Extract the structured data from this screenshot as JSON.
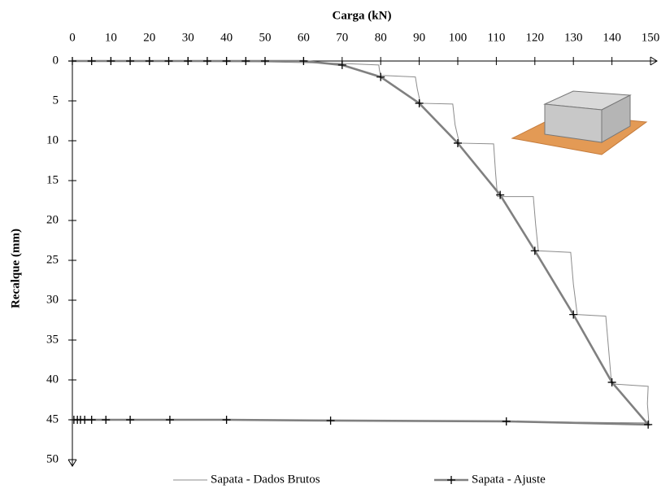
{
  "chart_data": {
    "type": "line",
    "xlabel": "Carga (kN)",
    "ylabel": "Recalque (mm)",
    "xlim": [
      0,
      150
    ],
    "xticks": [
      0,
      10,
      20,
      30,
      40,
      50,
      60,
      70,
      80,
      90,
      100,
      110,
      120,
      130,
      140,
      150
    ],
    "ylim": [
      0,
      50
    ],
    "yticks": [
      0,
      5,
      10,
      15,
      20,
      25,
      30,
      35,
      40,
      45,
      50
    ],
    "x_axis_position": "top",
    "y_inverted": true,
    "legend": "bottom",
    "series": [
      {
        "name": "Sapata - Dados Brutos",
        "color": "#8c8c8c",
        "markers": false,
        "x": [
          0,
          50,
          70,
          79.5,
          79.7,
          80,
          89,
          89.5,
          90.3,
          98.7,
          99.3,
          100.4,
          109.3,
          109.8,
          110.3,
          119.6,
          120.2,
          120.9,
          129.3,
          130,
          131,
          138.4,
          139.2,
          139.9,
          149.4,
          149.2,
          149.6,
          149,
          111,
          67,
          40,
          10,
          0
        ],
        "values": [
          0,
          0.1,
          0.3,
          0.5,
          1.2,
          1.8,
          2,
          3.5,
          5.3,
          5.4,
          8,
          10.3,
          10.4,
          14,
          17,
          17,
          20.5,
          23.8,
          24,
          28,
          31.8,
          32,
          36.5,
          40.5,
          40.8,
          43,
          45.5,
          45.4,
          45.2,
          45.1,
          45,
          45,
          45
        ]
      },
      {
        "name": "Sapata - Ajuste",
        "color": "#808080",
        "markers": true,
        "x": [
          0,
          5,
          10,
          15,
          20,
          25,
          30,
          35,
          40,
          45,
          50,
          60,
          70,
          80,
          90,
          100,
          111,
          120,
          130,
          140,
          149.4,
          112.6,
          67,
          40,
          25.3,
          15,
          8.7,
          5,
          3.2,
          2.1,
          1.3,
          0.4
        ],
        "values": [
          0,
          0,
          0,
          0,
          0,
          0,
          0,
          0,
          0,
          0,
          0,
          0,
          0.5,
          2,
          5.3,
          10.3,
          16.8,
          23.8,
          31.8,
          40.3,
          45.6,
          45.2,
          45.1,
          45,
          45,
          45,
          45,
          45,
          45,
          45,
          45,
          45
        ]
      }
    ]
  }
}
